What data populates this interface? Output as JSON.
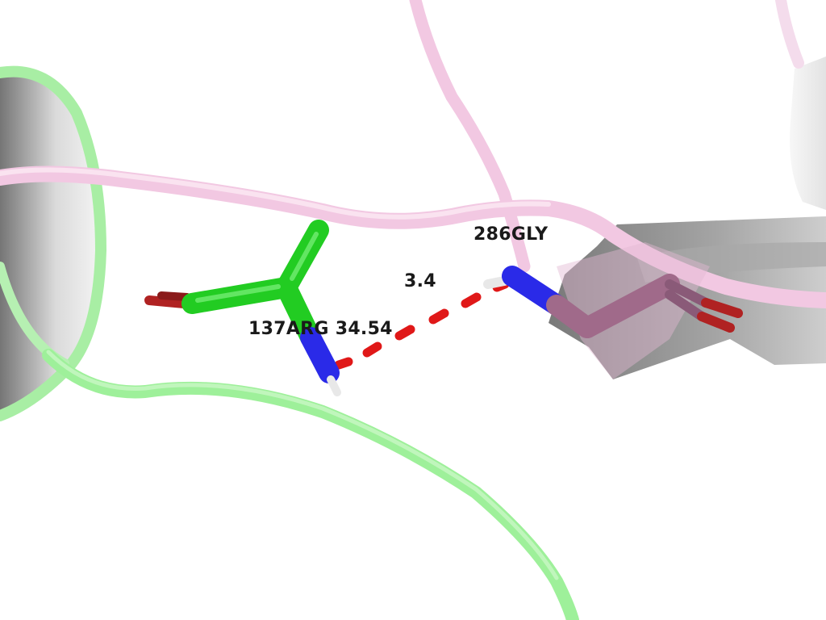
{
  "labels": {
    "residue_a": "286GLY",
    "distance": "3.4",
    "residue_b": "137ARG 34.54"
  },
  "colors": {
    "background": "#ffffff",
    "chain_a_ribbon": "#f2c8e2",
    "chain_b_ribbon": "#9ef09a",
    "carbon_chain_b": "#22cc22",
    "carbon_chain_a": "#a06a8a",
    "nitrogen": "#2a2ae8",
    "oxygen": "#b02222",
    "hydrogen": "#e8e8e8",
    "hbond_dashes": "#e01818",
    "helix_inner": "#9a9a9a"
  }
}
